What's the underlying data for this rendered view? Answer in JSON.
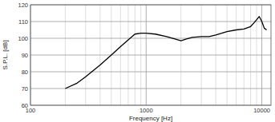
{
  "chart_data": {
    "type": "line",
    "x_label": "Frequency [Hz]",
    "y_label": "S.P.L. [dB]",
    "x": [
      200,
      250,
      300,
      400,
      500,
      600,
      700,
      800,
      900,
      1000,
      1200,
      1500,
      1800,
      2000,
      2200,
      2500,
      3000,
      3500,
      4000,
      4500,
      5000,
      6000,
      7000,
      8000,
      8500,
      9000,
      9500,
      10000,
      10500,
      11000
    ],
    "series": [
      {
        "name": "S.P.L.",
        "color": "#000000",
        "values": [
          70,
          73,
          77,
          84,
          90,
          95,
          99,
          102.5,
          103,
          103,
          102.5,
          101,
          99.5,
          98.5,
          99.5,
          100.5,
          101,
          101,
          102,
          103,
          104,
          105,
          105.5,
          107,
          109,
          111,
          113,
          110,
          106,
          105
        ]
      }
    ],
    "xlim": [
      100,
      12000
    ],
    "ylim": [
      60,
      120
    ],
    "xticks": [
      100,
      1000,
      10000
    ],
    "yticks": [
      60,
      70,
      80,
      90,
      100,
      110,
      120
    ],
    "log": "x",
    "grid": true
  }
}
